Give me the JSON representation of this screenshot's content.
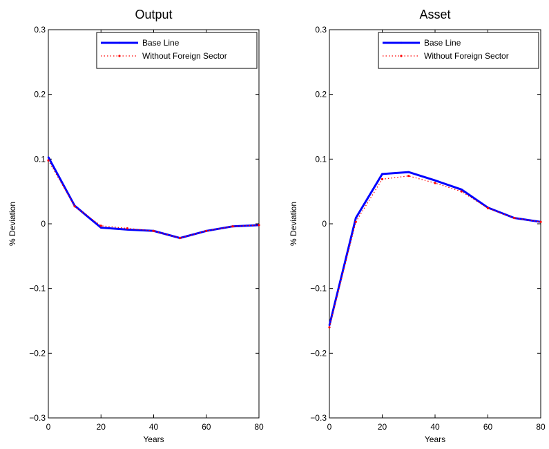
{
  "chart_data": [
    {
      "type": "line",
      "title": "Output",
      "xlabel": "Years",
      "ylabel": "% Deviation",
      "xlim": [
        0,
        80
      ],
      "ylim": [
        -0.3,
        0.3
      ],
      "xticks": [
        0,
        20,
        40,
        60,
        80
      ],
      "yticks": [
        -0.3,
        -0.2,
        -0.1,
        0,
        0.1,
        0.2,
        0.3
      ],
      "xtick_labels": [
        "0",
        "20",
        "40",
        "60",
        "80"
      ],
      "ytick_labels": [
        "−0.3",
        "−0.2",
        "−0.1",
        "0",
        "0.1",
        "0.2",
        "0.3"
      ],
      "grid": false,
      "legend_position": "top-right",
      "x": [
        0,
        10,
        20,
        30,
        40,
        50,
        60,
        70,
        80
      ],
      "series": [
        {
          "name": "Base Line",
          "color": "#0000ff",
          "style": "solid",
          "values": [
            0.103,
            0.028,
            -0.006,
            -0.009,
            -0.011,
            -0.022,
            -0.011,
            -0.004,
            -0.002
          ]
        },
        {
          "name": "Without Foreign Sector",
          "color": "#ff0000",
          "style": "dotted",
          "values": [
            0.098,
            0.027,
            -0.003,
            -0.007,
            -0.011,
            -0.022,
            -0.011,
            -0.004,
            -0.002
          ]
        }
      ]
    },
    {
      "type": "line",
      "title": "Asset",
      "xlabel": "Years",
      "ylabel": "% Deviation",
      "xlim": [
        0,
        80
      ],
      "ylim": [
        -0.3,
        0.3
      ],
      "xticks": [
        0,
        20,
        40,
        60,
        80
      ],
      "yticks": [
        -0.3,
        -0.2,
        -0.1,
        0,
        0.1,
        0.2,
        0.3
      ],
      "xtick_labels": [
        "0",
        "20",
        "40",
        "60",
        "80"
      ],
      "ytick_labels": [
        "−0.3",
        "−0.2",
        "−0.1",
        "0",
        "0.1",
        "0.2",
        "0.3"
      ],
      "grid": false,
      "legend_position": "top-right",
      "x": [
        0,
        10,
        20,
        30,
        40,
        50,
        60,
        70,
        80
      ],
      "series": [
        {
          "name": "Base Line",
          "color": "#0000ff",
          "style": "solid",
          "values": [
            -0.157,
            0.009,
            0.077,
            0.08,
            0.067,
            0.053,
            0.025,
            0.009,
            0.003
          ]
        },
        {
          "name": "Without Foreign Sector",
          "color": "#ff0000",
          "style": "dotted",
          "values": [
            -0.16,
            0.003,
            0.069,
            0.074,
            0.063,
            0.05,
            0.024,
            0.009,
            0.003
          ]
        }
      ]
    }
  ]
}
